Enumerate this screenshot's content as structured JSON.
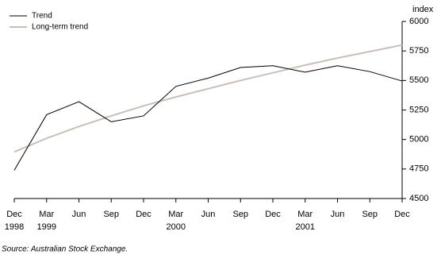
{
  "chart_data": {
    "type": "line",
    "y_unit": "index",
    "categories": [
      "Dec",
      "Mar",
      "Jun",
      "Sep",
      "Dec",
      "Mar",
      "Jun",
      "Sep",
      "Dec",
      "Mar",
      "Jun",
      "Sep",
      "Dec"
    ],
    "category_years": [
      "1998",
      "1999",
      null,
      null,
      null,
      "2000",
      null,
      null,
      null,
      "2001",
      null,
      null,
      null
    ],
    "series": [
      {
        "name": "Trend",
        "color": "#000000",
        "values": [
          4740,
          5210,
          5320,
          5150,
          5200,
          5450,
          5520,
          5610,
          5625,
          5570,
          5625,
          5575,
          5495
        ]
      },
      {
        "name": "Long-term trend",
        "color": "#c9bfb8",
        "values": [
          4895,
          5010,
          5110,
          5200,
          5285,
          5360,
          5430,
          5500,
          5565,
          5630,
          5690,
          5745,
          5800
        ]
      }
    ],
    "ylim": [
      4500,
      6000
    ],
    "yticks": [
      4500,
      4750,
      5000,
      5250,
      5500,
      5750,
      6000
    ],
    "grid": false,
    "legend": "top-left",
    "source": "Source: Australian Stock Exchange."
  }
}
